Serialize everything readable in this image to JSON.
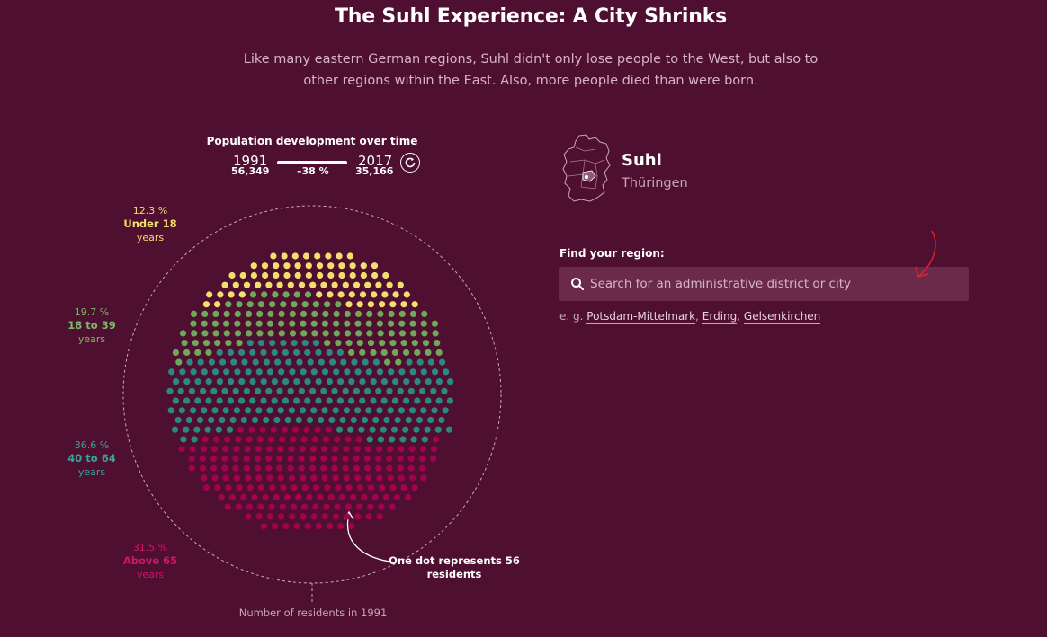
{
  "header": {
    "title": "The Suhl Experience: A City Shrinks",
    "subtitle": "Like many eastern German regions, Suhl didn't only lose people to the West, but also to other regions within the East. Also, more people died than were born."
  },
  "timeline": {
    "title": "Population development over time",
    "start_year": "1991",
    "end_year": "2017",
    "start_value": "56,349",
    "change": "–38 %",
    "end_value": "35,166",
    "replay_icon": "replay-icon"
  },
  "chart_data": {
    "type": "dot-circle",
    "title": "",
    "dot_value": "One dot represents 56 residents",
    "circle_label": "Number of residents in 1991",
    "groups": [
      {
        "name": "Under 18",
        "unit": "years",
        "percent": 12.3,
        "percent_label": "12.3 %",
        "color": "#f2df6f"
      },
      {
        "name": "18 to 39",
        "unit": "years",
        "percent": 19.7,
        "percent_label": "19.7 %",
        "color": "#6fa85a"
      },
      {
        "name": "40 to 64",
        "unit": "years",
        "percent": 36.6,
        "percent_label": "36.6 %",
        "color": "#2a8a82"
      },
      {
        "name": "Above 65",
        "unit": "years",
        "percent": 31.5,
        "percent_label": "31.5 %",
        "color": "#a3004f"
      }
    ]
  },
  "region": {
    "name": "Suhl",
    "state": "Thüringen",
    "map_icon": "germany-map-icon"
  },
  "search": {
    "label": "Find your region:",
    "placeholder": "Search for an administrative district or city",
    "examples_prefix": "e. g.",
    "examples": [
      "Potsdam-Mittelmark",
      "Erding",
      "Gelsenkirchen"
    ]
  },
  "colors": {
    "background": "#4f0f30",
    "accent_red": "#e8202a"
  }
}
